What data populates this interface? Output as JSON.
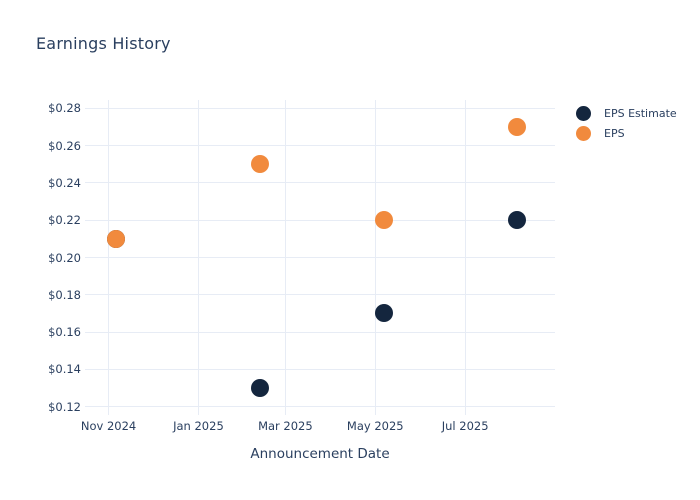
{
  "chart_data": {
    "type": "scatter",
    "title": "Earnings History",
    "xlabel": "Announcement Date",
    "ylabel": "",
    "legend_position": "right-outside-top",
    "grid": true,
    "marker_size": 18,
    "colors": {
      "text": "#2a3f5f",
      "grid": "#e7ecf5",
      "background": "#ffffff",
      "eps_estimate": "#14263e",
      "eps": "#f18a3d"
    },
    "x_axis": {
      "range": [
        "2024-10-16",
        "2025-08-31"
      ],
      "ticks": [
        {
          "date": "2024-11-01",
          "label": "Nov 2024"
        },
        {
          "date": "2025-01-01",
          "label": "Jan 2025"
        },
        {
          "date": "2025-03-01",
          "label": "Mar 2025"
        },
        {
          "date": "2025-05-01",
          "label": "May 2025"
        },
        {
          "date": "2025-07-01",
          "label": "Jul 2025"
        }
      ]
    },
    "y_axis": {
      "range": [
        0.1155,
        0.2845
      ],
      "ticks": [
        0.28,
        0.26,
        0.24,
        0.22,
        0.2,
        0.18,
        0.16,
        0.14,
        0.12
      ],
      "tick_prefix": "$"
    },
    "series": [
      {
        "name": "EPS Estimate",
        "color": "#14263e",
        "points": [
          {
            "x": "2024-11-06",
            "y": 0.21
          },
          {
            "x": "2025-02-12",
            "y": 0.13
          },
          {
            "x": "2025-05-07",
            "y": 0.17
          },
          {
            "x": "2025-08-05",
            "y": 0.22
          }
        ]
      },
      {
        "name": "EPS",
        "color": "#f18a3d",
        "points": [
          {
            "x": "2024-11-06",
            "y": 0.21
          },
          {
            "x": "2025-02-12",
            "y": 0.25
          },
          {
            "x": "2025-05-07",
            "y": 0.22
          },
          {
            "x": "2025-08-05",
            "y": 0.27
          }
        ]
      }
    ]
  }
}
